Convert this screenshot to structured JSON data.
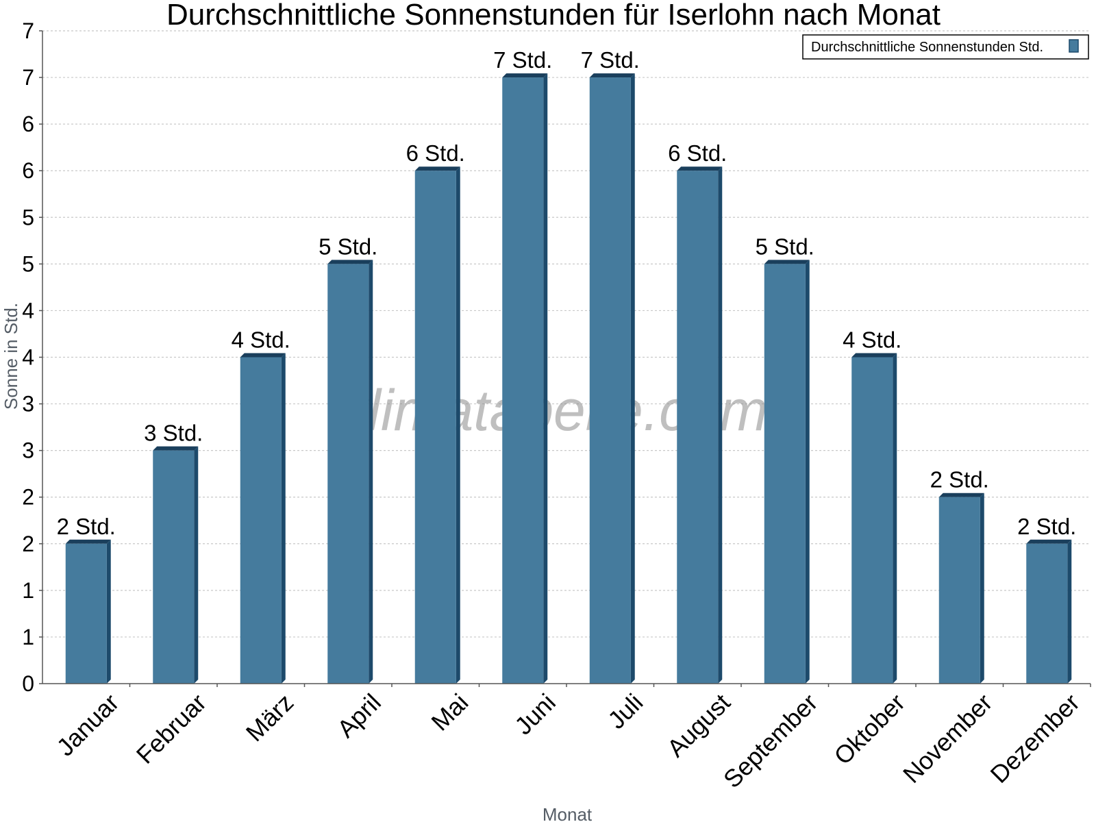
{
  "chart_data": {
    "type": "bar",
    "title": "Durchschnittliche Sonnenstunden für Iserlohn nach Monat",
    "xlabel": "Monat",
    "ylabel": "Sonne in Std.",
    "categories": [
      "Januar",
      "Februar",
      "März",
      "April",
      "Mai",
      "Juni",
      "Juli",
      "August",
      "September",
      "Oktober",
      "November",
      "Dezember"
    ],
    "series": [
      {
        "name": "Durchschnittliche Sonnenstunden Std.",
        "values": [
          1.5,
          2.5,
          3.5,
          4.5,
          5.5,
          6.5,
          6.5,
          5.5,
          4.5,
          3.5,
          2.0,
          1.5
        ],
        "labels": [
          "2 Std.",
          "3 Std.",
          "4 Std.",
          "5 Std.",
          "6 Std.",
          "7 Std.",
          "7 Std.",
          "6 Std.",
          "5 Std.",
          "4 Std.",
          "2 Std.",
          "2 Std."
        ]
      }
    ],
    "ylim": [
      0,
      7
    ],
    "yticks": [
      0,
      0.5,
      1,
      1.5,
      2,
      2.5,
      3,
      3.5,
      4,
      4.5,
      5,
      5.5,
      6,
      6.5,
      7
    ],
    "ytick_labels": [
      "0",
      "1",
      "1",
      "2",
      "2",
      "3",
      "3",
      "4",
      "4",
      "5",
      "5",
      "6",
      "6",
      "7",
      "7"
    ],
    "grid": true,
    "legend_position": "top-right",
    "colors": {
      "bar": "#457b9d",
      "bar_side": "#1d4a6b",
      "bar_top": "#1a3f5c"
    }
  },
  "watermark": "klimatabelle.com"
}
